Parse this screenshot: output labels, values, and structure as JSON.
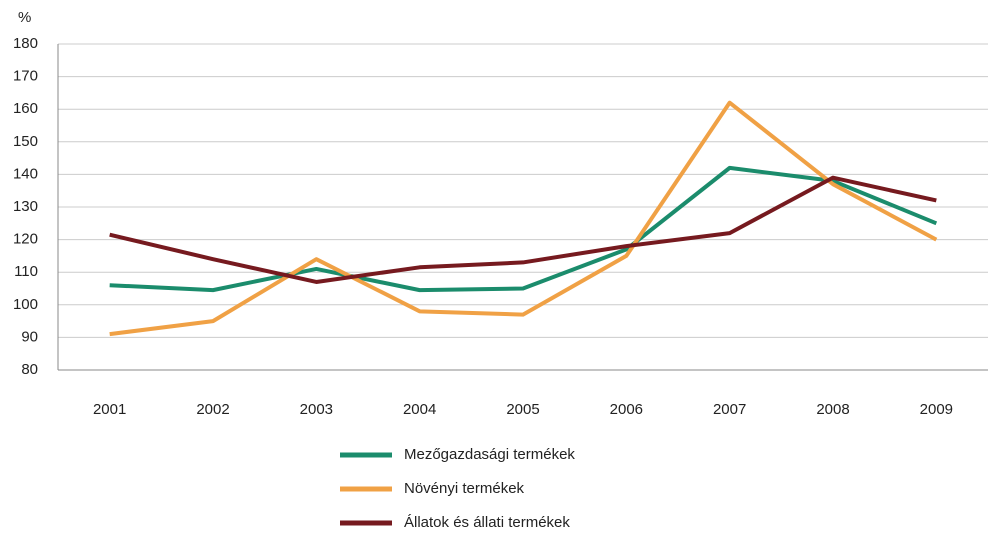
{
  "chart_data": {
    "type": "line",
    "y_unit_label": "%",
    "categories": [
      "2001",
      "2002",
      "2003",
      "2004",
      "2005",
      "2006",
      "2007",
      "2008",
      "2009"
    ],
    "series": [
      {
        "name": "Mezőgazdasági termékek",
        "color": "#1b8c6c",
        "values": [
          106,
          104.5,
          111,
          104.5,
          105,
          117,
          142,
          138,
          125
        ]
      },
      {
        "name": "Növényi termékek",
        "color": "#f0a145",
        "values": [
          91,
          95,
          114,
          98,
          97,
          115,
          162,
          137,
          120
        ]
      },
      {
        "name": "Állatok és állati termékek",
        "color": "#761a1f",
        "values": [
          121.5,
          114,
          107,
          111.5,
          113,
          118,
          122,
          139,
          132
        ]
      }
    ],
    "ylim": [
      80,
      180
    ],
    "yticks": [
      80,
      90,
      100,
      110,
      120,
      130,
      140,
      150,
      160,
      170,
      180
    ],
    "grid": true
  }
}
